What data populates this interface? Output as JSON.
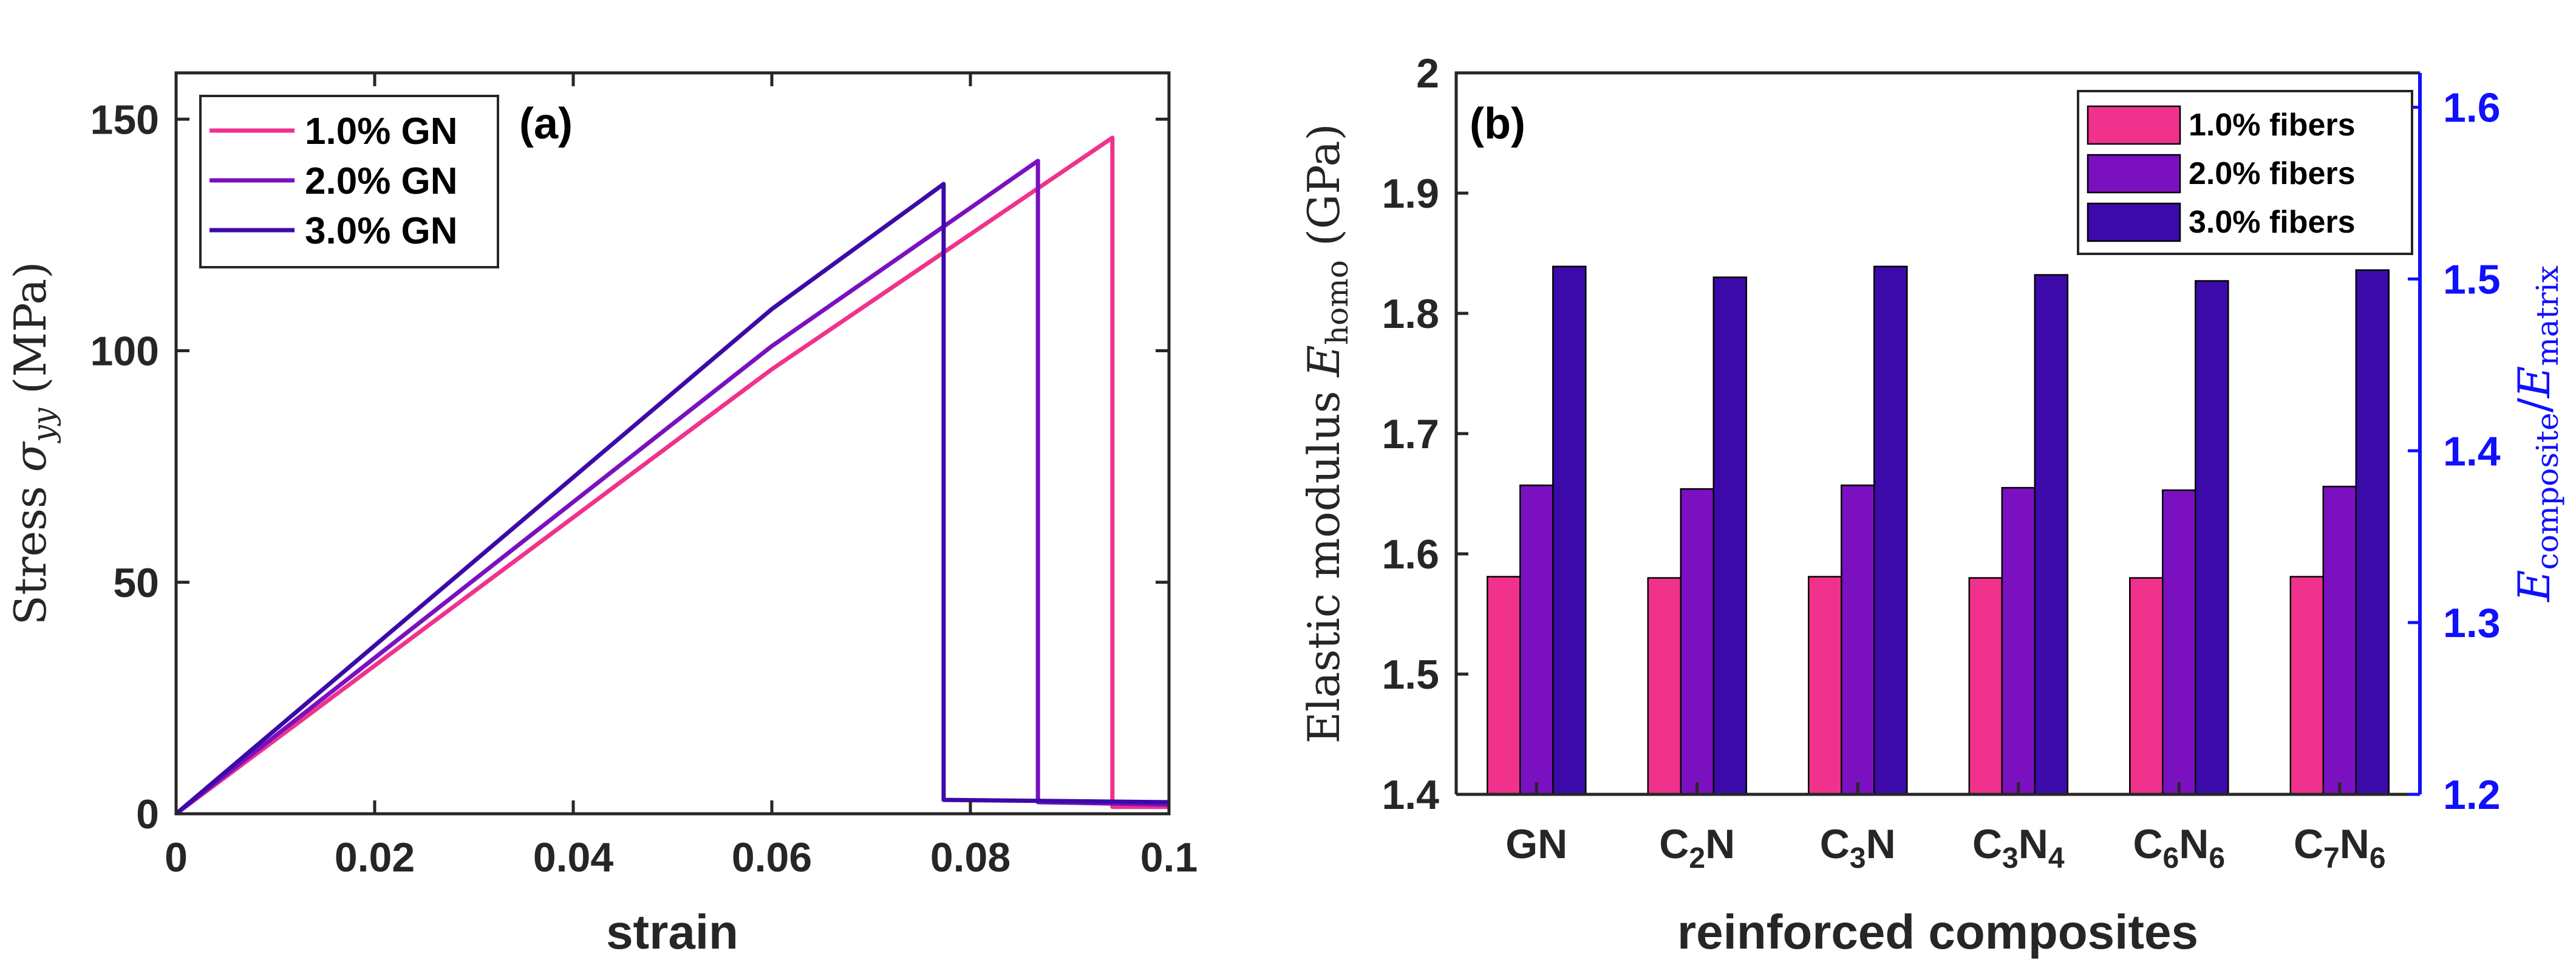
{
  "colors": {
    "series1": "#f0328c",
    "series2": "#7a10c0",
    "series3": "#3c0aa8",
    "axis": "#262626",
    "right_axis": "#1010ff"
  },
  "chart_data": [
    {
      "type": "line",
      "panel_label": "(a)",
      "xlabel": "strain",
      "ylabel_prefix": "Stress ",
      "ylabel_symbol": "σ",
      "ylabel_subscript": "yy",
      "ylabel_suffix": " (MPa)",
      "xlim": [
        0,
        0.1
      ],
      "ylim": [
        0,
        160
      ],
      "xticks": [
        0,
        0.02,
        0.04,
        0.06,
        0.08,
        0.1
      ],
      "xtick_labels": [
        "0",
        "0.02",
        "0.04",
        "0.06",
        "0.08",
        "0.1"
      ],
      "yticks": [
        0,
        50,
        100,
        150
      ],
      "ytick_labels": [
        "0",
        "50",
        "100",
        "150"
      ],
      "legend_position": "top-left",
      "series": [
        {
          "name": "1.0% GN",
          "x": [
            0,
            0.06,
            0.0943,
            0.0943,
            0.1
          ],
          "y": [
            0,
            96.0,
            146.0,
            1.5,
            1.5
          ]
        },
        {
          "name": "2.0% GN",
          "x": [
            0,
            0.06,
            0.0868,
            0.0868,
            0.1
          ],
          "y": [
            0,
            101.0,
            141.0,
            2.5,
            2.0
          ]
        },
        {
          "name": "3.0% GN",
          "x": [
            0,
            0.06,
            0.0773,
            0.0773,
            0.1
          ],
          "y": [
            0,
            109.0,
            136.0,
            3.0,
            2.5
          ]
        }
      ]
    },
    {
      "type": "bar",
      "panel_label": "(b)",
      "xlabel": "reinforced composites",
      "ylabel_prefix": "Elastic modulus ",
      "ylabel_symbol": "E",
      "ylabel_subscript": "homo",
      "ylabel_suffix": " (GPa)",
      "y2label_symbol1": "E",
      "y2label_subscript1": "composite",
      "y2label_mid": "/",
      "y2label_symbol2": "E",
      "y2label_subscript2": "matrix",
      "categories": [
        {
          "base1": "GN",
          "sub1": "",
          "base2": "",
          "sub2": ""
        },
        {
          "base1": "C",
          "sub1": "2",
          "base2": "N",
          "sub2": ""
        },
        {
          "base1": "C",
          "sub1": "3",
          "base2": "N",
          "sub2": ""
        },
        {
          "base1": "C",
          "sub1": "3",
          "base2": "N",
          "sub2": "4"
        },
        {
          "base1": "C",
          "sub1": "6",
          "base2": "N",
          "sub2": "6"
        },
        {
          "base1": "C",
          "sub1": "7",
          "base2": "N",
          "sub2": "6"
        }
      ],
      "ylim": [
        1.4,
        2.0
      ],
      "yticks": [
        1.4,
        1.5,
        1.6,
        1.7,
        1.8,
        1.9,
        2.0
      ],
      "ytick_labels": [
        "1.4",
        "1.5",
        "1.6",
        "1.7",
        "1.8",
        "1.9",
        "2"
      ],
      "y2lim": [
        1.2,
        1.62
      ],
      "y2ticks": [
        1.2,
        1.3,
        1.4,
        1.5,
        1.6
      ],
      "y2tick_labels": [
        "1.2",
        "1.3",
        "1.4",
        "1.5",
        "1.6"
      ],
      "legend_position": "top-right",
      "series": [
        {
          "name": "1.0% fibers",
          "values": [
            1.581,
            1.58,
            1.581,
            1.58,
            1.58,
            1.581
          ]
        },
        {
          "name": "2.0% fibers",
          "values": [
            1.657,
            1.654,
            1.657,
            1.655,
            1.653,
            1.656
          ]
        },
        {
          "name": "3.0% fibers",
          "values": [
            1.839,
            1.83,
            1.839,
            1.832,
            1.827,
            1.836
          ]
        }
      ]
    }
  ]
}
